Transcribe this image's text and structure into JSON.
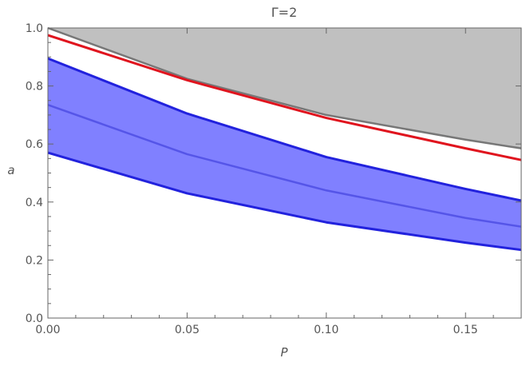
{
  "chart_data": {
    "type": "area",
    "title": "Γ=2",
    "xlabel": "P",
    "ylabel": "a",
    "xlim": [
      0,
      0.17
    ],
    "ylim": [
      0,
      1.0
    ],
    "x_ticks": [
      0.0,
      0.05,
      0.1,
      0.15
    ],
    "x_tick_labels": [
      "0.00",
      "0.05",
      "0.10",
      "0.15"
    ],
    "y_ticks": [
      0.0,
      0.2,
      0.4,
      0.6,
      0.8,
      1.0
    ],
    "y_tick_labels": [
      "0.0",
      "0.2",
      "0.4",
      "0.6",
      "0.8",
      "1.0"
    ],
    "grid": false,
    "colors": {
      "gray_region": "#c0c0c0",
      "gray_line": "#777777",
      "red_line": "#e0141e",
      "blue_band": "#8080ff",
      "blue_line": "#2222dd",
      "blue_mid_line": "#5555e8",
      "axis": "#666666"
    },
    "series": [
      {
        "role": "gray-boundary",
        "x": [
          0,
          0.05,
          0.1,
          0.15,
          0.17
        ],
        "values": [
          1.0,
          0.825,
          0.7,
          0.615,
          0.585
        ]
      },
      {
        "role": "red-curve",
        "x": [
          0,
          0.05,
          0.1,
          0.15,
          0.17
        ],
        "values": [
          0.975,
          0.82,
          0.69,
          0.585,
          0.545
        ]
      },
      {
        "role": "blue-upper",
        "x": [
          0,
          0.05,
          0.1,
          0.15,
          0.17
        ],
        "values": [
          0.895,
          0.705,
          0.555,
          0.445,
          0.405
        ]
      },
      {
        "role": "blue-middle",
        "x": [
          0,
          0.05,
          0.1,
          0.15,
          0.17
        ],
        "values": [
          0.735,
          0.565,
          0.44,
          0.345,
          0.315
        ]
      },
      {
        "role": "blue-lower",
        "x": [
          0,
          0.05,
          0.1,
          0.15,
          0.17
        ],
        "values": [
          0.57,
          0.43,
          0.33,
          0.26,
          0.235
        ]
      }
    ]
  }
}
